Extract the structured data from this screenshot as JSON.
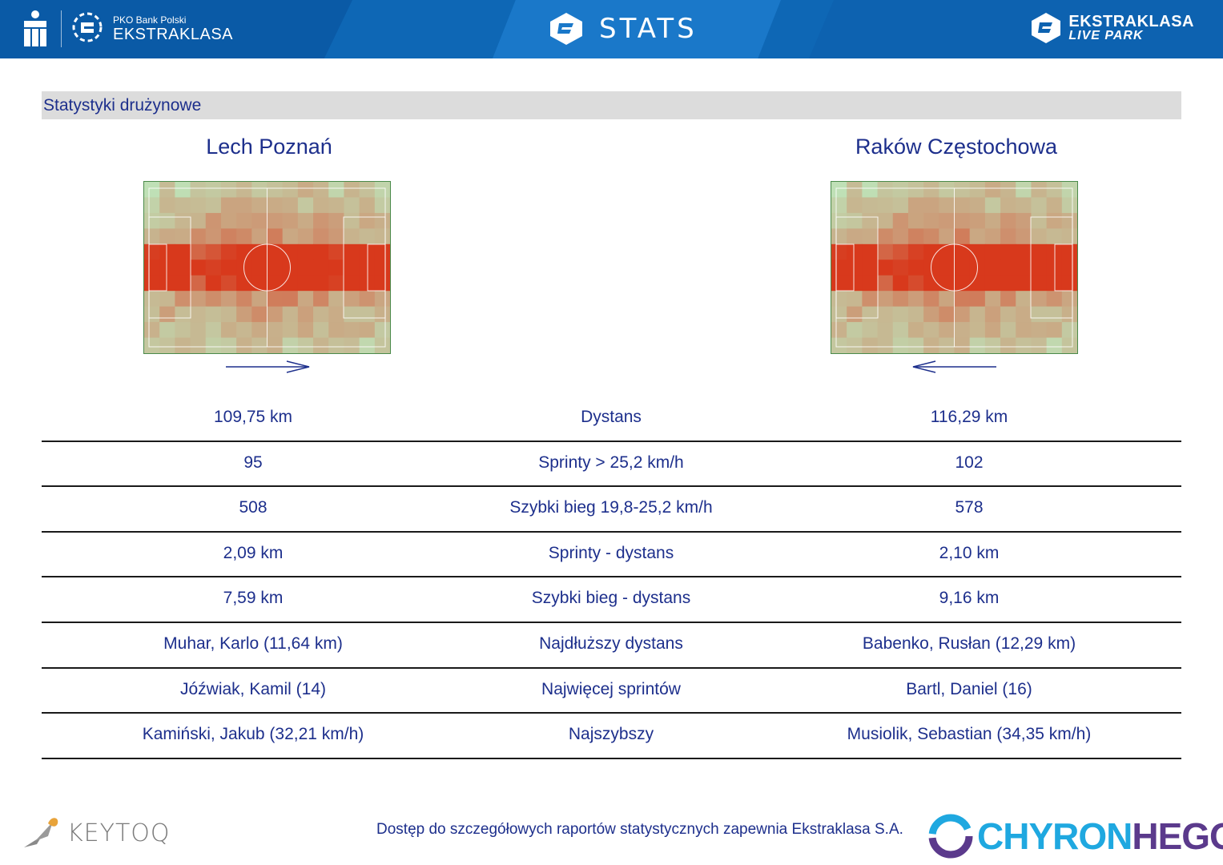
{
  "header": {
    "sponsor_small": "PKO Bank Polski",
    "sponsor_big": "EKSTRAKLASA",
    "title": "STATS",
    "right_line1": "EKSTRAKLASA",
    "right_line2": "LIVE PARK",
    "colors": {
      "bar": "#0e67b5",
      "text": "#ffffff"
    }
  },
  "section": {
    "title": "Statystyki drużynowe"
  },
  "teams": {
    "left": {
      "name": "Lech Poznań",
      "attack_direction": "right"
    },
    "right": {
      "name": "Raków Częstochowa",
      "attack_direction": "left"
    }
  },
  "stats": [
    {
      "left": "109,75 km",
      "label": "Dystans",
      "right": "116,29 km"
    },
    {
      "left": "95",
      "label": "Sprinty > 25,2 km/h",
      "right": "102"
    },
    {
      "left": "508",
      "label": "Szybki bieg 19,8-25,2 km/h",
      "right": "578"
    },
    {
      "left": "2,09 km",
      "label": "Sprinty - dystans",
      "right": "2,10 km"
    },
    {
      "left": "7,59 km",
      "label": "Szybki bieg - dystans",
      "right": "9,16 km"
    },
    {
      "left": "Muhar, Karlo (11,64 km)",
      "label": "Najdłuższy dystans",
      "right": "Babenko, Rusłan (12,29 km)"
    },
    {
      "left": "Jóźwiak, Kamil (14)",
      "label": "Najwięcej sprintów",
      "right": "Bartl, Daniel (16)"
    },
    {
      "left": "Kamiński, Jakub (32,21 km/h)",
      "label": "Najszybszy",
      "right": "Musiolik, Sebastian (34,35 km/h)"
    }
  ],
  "footer": {
    "note": "Dostęp do szczegółowych raportów statystycznych zapewnia Ekstraklasa S.A.",
    "logo_left": "KEYTOQ",
    "logo_right_a": "CHYRON",
    "logo_right_b": "HEGO"
  },
  "colors": {
    "text_primary": "#1d2f8c",
    "section_bg": "#dcdcdc",
    "heat_hot": "#d8391c",
    "pitch": "#bfe0b6"
  }
}
